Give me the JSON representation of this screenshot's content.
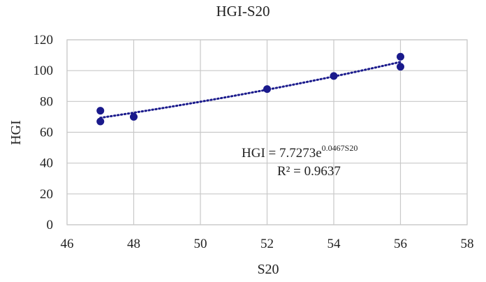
{
  "chart_data": {
    "type": "scatter",
    "title": "HGI-S20",
    "xlabel": "S20",
    "ylabel": "HGI",
    "xlim": [
      46,
      58
    ],
    "ylim": [
      0,
      120
    ],
    "xticks": [
      46,
      48,
      50,
      52,
      54,
      56,
      58
    ],
    "yticks": [
      0,
      20,
      40,
      60,
      80,
      100,
      120
    ],
    "grid": true,
    "series": [
      {
        "points": [
          {
            "x": 47,
            "y": 74
          },
          {
            "x": 47,
            "y": 67
          },
          {
            "x": 48,
            "y": 70
          },
          {
            "x": 52,
            "y": 88
          },
          {
            "x": 54,
            "y": 96.5
          },
          {
            "x": 56,
            "y": 109
          },
          {
            "x": 56,
            "y": 102.5
          }
        ]
      }
    ],
    "trendline": {
      "type": "exponential",
      "a": 7.7273,
      "b": 0.0467,
      "x_range": [
        47,
        56
      ],
      "equation_base": "HGI = 7.7273e",
      "equation_exponent": "0.0467S20",
      "r_squared_text": "R² = 0.9637"
    },
    "colors": {
      "marker": "#1a1a8c",
      "trendline": "#1a1a8c",
      "grid": "#c8c8c8",
      "plot_border": "#c8c8c8"
    }
  }
}
